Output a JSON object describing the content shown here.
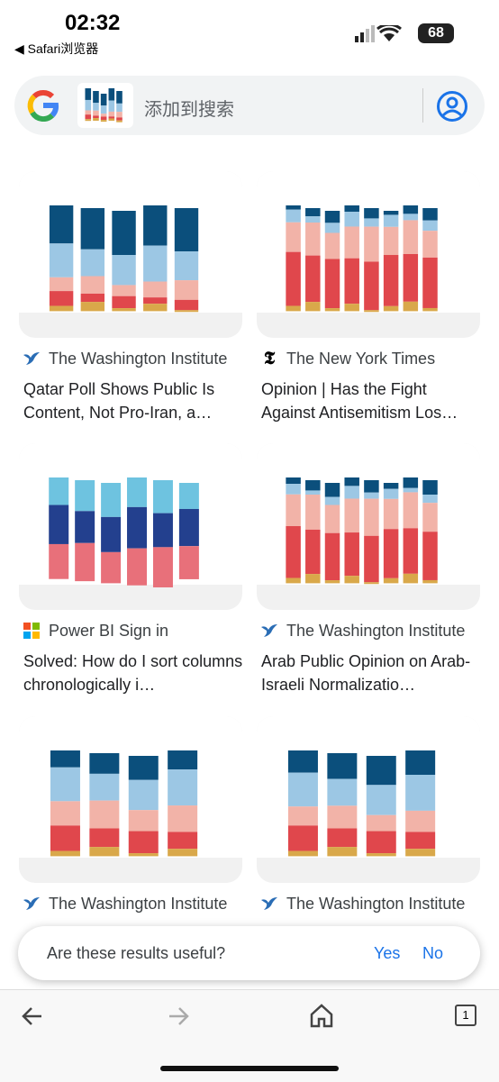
{
  "status_bar": {
    "time": "02:32",
    "back_app": "Safari浏览器",
    "battery": "68"
  },
  "search_bar": {
    "placeholder": "添加到搜索"
  },
  "results": [
    {
      "source": "The Washington Institute",
      "title": "Qatar Poll Shows Public Is Content, Not Pro-Iran, a…"
    },
    {
      "source": "The New York Times",
      "title": "Opinion | Has the Fight Against Antisemitism Los…"
    },
    {
      "source": "Power BI Sign in",
      "title": "Solved: How do I sort columns chronologically i…"
    },
    {
      "source": "The Washington Institute",
      "title": "Arab Public Opinion on Arab-Israeli Normalizatio…"
    },
    {
      "source": "The Washington Institute"
    },
    {
      "source": "The Washington Institute"
    }
  ],
  "feedback": {
    "question": "Are these results useful?",
    "yes": "Yes",
    "no": "No"
  },
  "toolbar": {
    "tabs": "1"
  }
}
